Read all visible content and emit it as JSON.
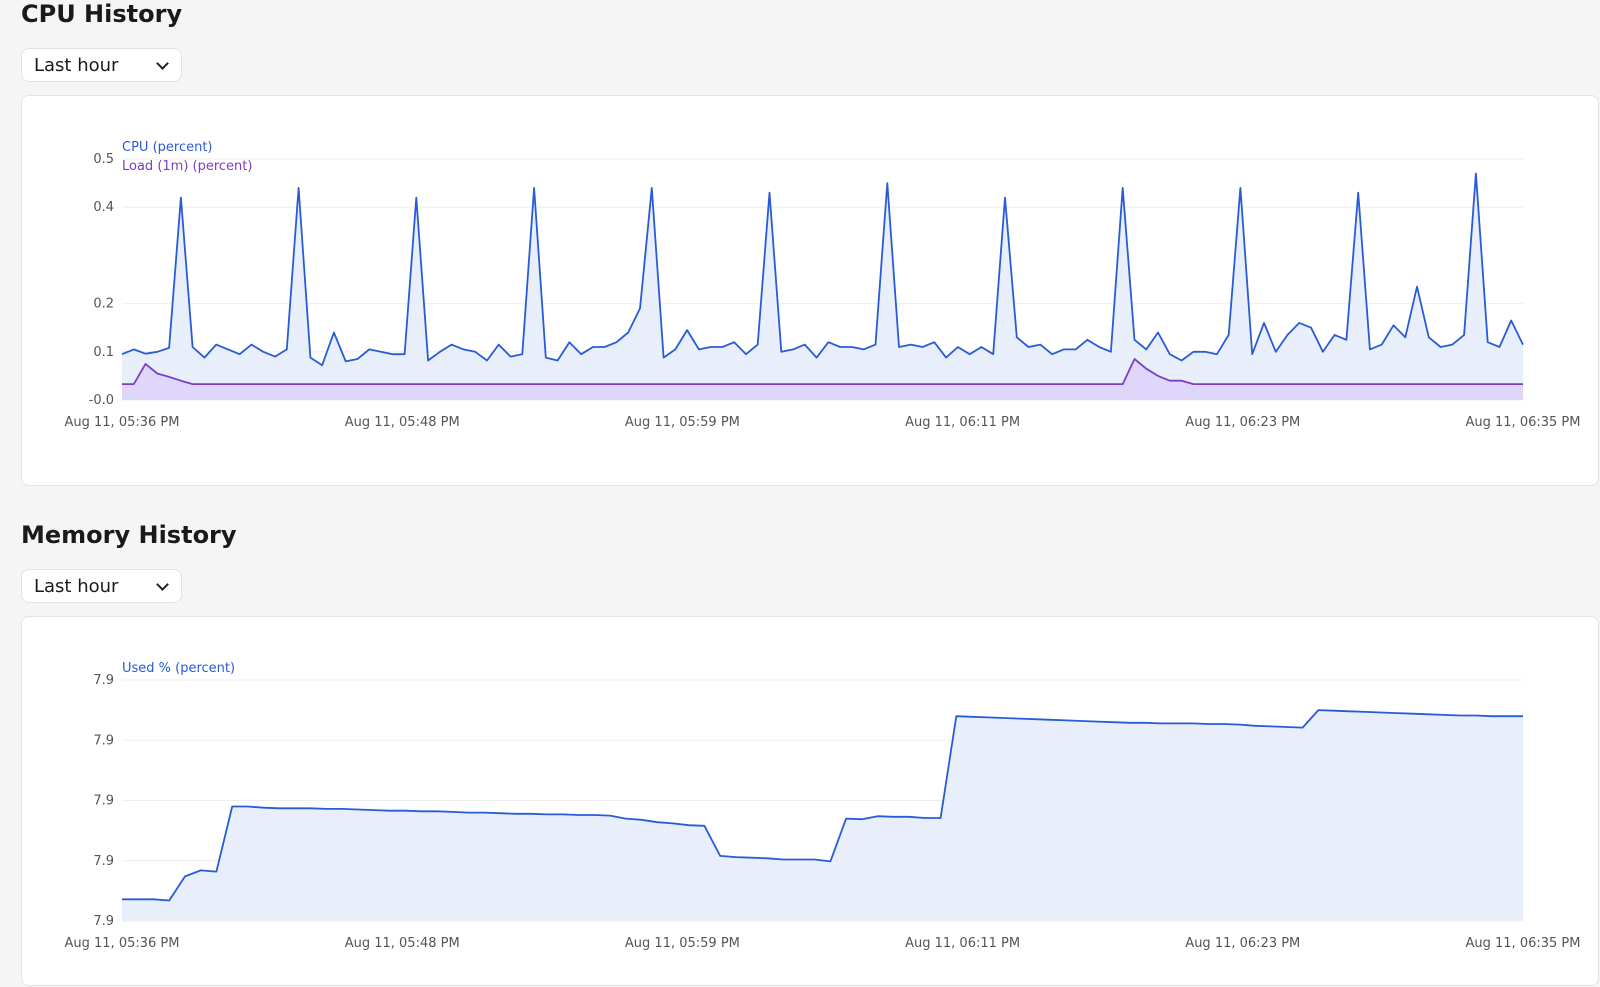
{
  "cpu": {
    "title": "CPU History",
    "range": "Last hour",
    "chart_data": {
      "type": "area",
      "x_ticks": [
        "Aug 11, 05:36 PM",
        "Aug 11, 05:48 PM",
        "Aug 11, 05:59 PM",
        "Aug 11, 06:11 PM",
        "Aug 11, 06:23 PM",
        "Aug 11, 06:35 PM"
      ],
      "y_ticks": [
        {
          "label": "0.5",
          "value": 0.5
        },
        {
          "label": "0.4",
          "value": 0.4
        },
        {
          "label": "0.2",
          "value": 0.2
        },
        {
          "label": "0.1",
          "value": 0.1
        },
        {
          "label": "-0.0",
          "value": 0.0
        }
      ],
      "ylim": [
        0.0,
        0.5
      ],
      "grid": true,
      "legend_position": "top-left",
      "series": [
        {
          "name": "CPU (percent)",
          "color": "#2a5bd7",
          "fill": "#e6edfb",
          "values": [
            0.095,
            0.105,
            0.096,
            0.1,
            0.108,
            0.42,
            0.11,
            0.088,
            0.115,
            0.105,
            0.095,
            0.115,
            0.1,
            0.09,
            0.105,
            0.44,
            0.088,
            0.072,
            0.14,
            0.08,
            0.085,
            0.105,
            0.1,
            0.095,
            0.095,
            0.42,
            0.082,
            0.1,
            0.115,
            0.105,
            0.1,
            0.082,
            0.115,
            0.09,
            0.095,
            0.44,
            0.088,
            0.082,
            0.12,
            0.095,
            0.11,
            0.11,
            0.12,
            0.14,
            0.19,
            0.44,
            0.088,
            0.105,
            0.145,
            0.105,
            0.11,
            0.11,
            0.12,
            0.095,
            0.115,
            0.43,
            0.1,
            0.105,
            0.115,
            0.088,
            0.12,
            0.11,
            0.11,
            0.105,
            0.115,
            0.45,
            0.11,
            0.115,
            0.11,
            0.12,
            0.088,
            0.11,
            0.095,
            0.11,
            0.095,
            0.42,
            0.13,
            0.11,
            0.115,
            0.095,
            0.105,
            0.105,
            0.125,
            0.11,
            0.1,
            0.44,
            0.125,
            0.105,
            0.14,
            0.095,
            0.082,
            0.1,
            0.1,
            0.095,
            0.135,
            0.44,
            0.095,
            0.16,
            0.1,
            0.135,
            0.16,
            0.15,
            0.1,
            0.135,
            0.125,
            0.43,
            0.105,
            0.115,
            0.155,
            0.13,
            0.235,
            0.13,
            0.11,
            0.115,
            0.135,
            0.47,
            0.12,
            0.11,
            0.165,
            0.115
          ]
        },
        {
          "name": "Load (1m) (percent)",
          "color": "#7b3fc4",
          "fill": "#ddd4f8",
          "values": [
            0.033,
            0.033,
            0.075,
            0.055,
            0.048,
            0.04,
            0.033,
            0.033,
            0.033,
            0.033,
            0.033,
            0.033,
            0.033,
            0.033,
            0.033,
            0.033,
            0.033,
            0.033,
            0.033,
            0.033,
            0.033,
            0.033,
            0.033,
            0.033,
            0.033,
            0.033,
            0.033,
            0.033,
            0.033,
            0.033,
            0.033,
            0.033,
            0.033,
            0.033,
            0.033,
            0.033,
            0.033,
            0.033,
            0.033,
            0.033,
            0.033,
            0.033,
            0.033,
            0.033,
            0.033,
            0.033,
            0.033,
            0.033,
            0.033,
            0.033,
            0.033,
            0.033,
            0.033,
            0.033,
            0.033,
            0.033,
            0.033,
            0.033,
            0.033,
            0.033,
            0.033,
            0.033,
            0.033,
            0.033,
            0.033,
            0.033,
            0.033,
            0.033,
            0.033,
            0.033,
            0.033,
            0.033,
            0.033,
            0.033,
            0.033,
            0.033,
            0.033,
            0.033,
            0.033,
            0.033,
            0.033,
            0.033,
            0.033,
            0.033,
            0.033,
            0.033,
            0.085,
            0.065,
            0.05,
            0.04,
            0.04,
            0.033,
            0.033,
            0.033,
            0.033,
            0.033,
            0.033,
            0.033,
            0.033,
            0.033,
            0.033,
            0.033,
            0.033,
            0.033,
            0.033,
            0.033,
            0.033,
            0.033,
            0.033,
            0.033,
            0.033,
            0.033,
            0.033,
            0.033,
            0.033,
            0.033,
            0.033,
            0.033,
            0.033,
            0.033
          ]
        }
      ]
    }
  },
  "memory": {
    "title": "Memory History",
    "range": "Last hour",
    "chart_data": {
      "type": "area",
      "x_ticks": [
        "Aug 11, 05:36 PM",
        "Aug 11, 05:48 PM",
        "Aug 11, 05:59 PM",
        "Aug 11, 06:11 PM",
        "Aug 11, 06:23 PM",
        "Aug 11, 06:35 PM"
      ],
      "y_ticks": [
        {
          "label": "7.9",
          "value": 4
        },
        {
          "label": "7.9",
          "value": 3
        },
        {
          "label": "7.9",
          "value": 2
        },
        {
          "label": "7.9",
          "value": 1
        },
        {
          "label": "7.9",
          "value": 0
        }
      ],
      "ylim": [
        0,
        4
      ],
      "grid": true,
      "legend_position": "top-left",
      "series": [
        {
          "name": "Used % (percent)",
          "color": "#2a5bd7",
          "fill": "#e6edfb",
          "values": [
            0.36,
            0.36,
            0.36,
            0.34,
            0.74,
            0.84,
            0.82,
            1.9,
            1.9,
            1.88,
            1.87,
            1.87,
            1.87,
            1.86,
            1.86,
            1.85,
            1.84,
            1.83,
            1.83,
            1.82,
            1.82,
            1.81,
            1.8,
            1.8,
            1.79,
            1.78,
            1.78,
            1.77,
            1.77,
            1.76,
            1.76,
            1.75,
            1.7,
            1.68,
            1.64,
            1.62,
            1.59,
            1.58,
            1.08,
            1.06,
            1.05,
            1.04,
            1.02,
            1.02,
            1.02,
            0.99,
            1.7,
            1.69,
            1.74,
            1.73,
            1.73,
            1.71,
            1.71,
            3.4,
            3.39,
            3.38,
            3.37,
            3.36,
            3.35,
            3.34,
            3.33,
            3.32,
            3.31,
            3.3,
            3.29,
            3.29,
            3.28,
            3.28,
            3.28,
            3.27,
            3.27,
            3.26,
            3.24,
            3.23,
            3.22,
            3.21,
            3.5,
            3.49,
            3.48,
            3.47,
            3.46,
            3.45,
            3.44,
            3.43,
            3.42,
            3.41,
            3.41,
            3.4,
            3.4,
            3.4
          ]
        }
      ]
    }
  }
}
